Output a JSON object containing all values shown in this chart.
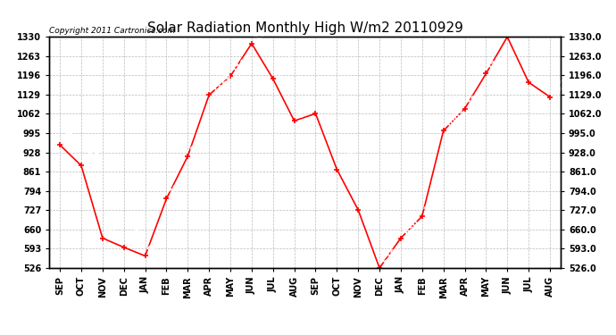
{
  "title": "Solar Radiation Monthly High W/m2 20110929",
  "copyright": "Copyright 2011 Cartronics.com",
  "months": [
    "SEP",
    "OCT",
    "NOV",
    "DEC",
    "JAN",
    "FEB",
    "MAR",
    "APR",
    "MAY",
    "JUN",
    "JUL",
    "AUG",
    "SEP",
    "OCT",
    "NOV",
    "DEC",
    "JAN",
    "FEB",
    "MAR",
    "APR",
    "MAY",
    "JUN",
    "JUL",
    "AUG"
  ],
  "values": [
    954,
    882,
    630,
    598,
    568,
    767,
    915,
    1128,
    1193,
    1307,
    1184,
    1038,
    1063,
    869,
    728,
    526,
    630,
    706,
    1003,
    1080,
    1202,
    1330,
    1172,
    1121
  ],
  "yticks": [
    526.0,
    593.0,
    660.0,
    727.0,
    794.0,
    861.0,
    928.0,
    995.0,
    1062.0,
    1129.0,
    1196.0,
    1263.0,
    1330.0
  ],
  "ymin": 526.0,
  "ymax": 1330.0,
  "line_color": "#FF0000",
  "bg_color": "#FFFFFF",
  "grid_color": "#BBBBBB",
  "title_fontsize": 11,
  "label_fontsize": 7,
  "annotation_fontsize": 7,
  "copyright_fontsize": 6.5
}
